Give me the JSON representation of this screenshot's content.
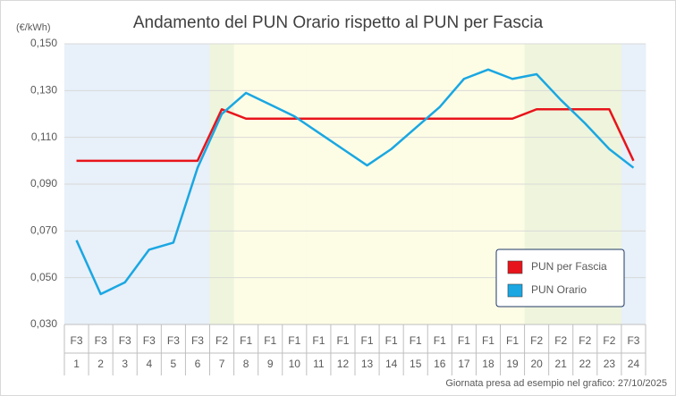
{
  "chart_data": {
    "type": "line",
    "title": "Andamento del PUN Orario rispetto al PUN per Fascia",
    "y_label": "(€/kWh)",
    "footnote": "Giornata presa ad esempio nel grafico: 27/10/2025",
    "categories": [
      "1",
      "2",
      "3",
      "4",
      "5",
      "6",
      "7",
      "8",
      "9",
      "10",
      "11",
      "12",
      "13",
      "14",
      "15",
      "16",
      "17",
      "18",
      "19",
      "20",
      "21",
      "22",
      "23",
      "24"
    ],
    "bands": [
      "F3",
      "F3",
      "F3",
      "F3",
      "F3",
      "F3",
      "F2",
      "F1",
      "F1",
      "F1",
      "F1",
      "F1",
      "F1",
      "F1",
      "F1",
      "F1",
      "F1",
      "F1",
      "F1",
      "F2",
      "F2",
      "F2",
      "F2",
      "F3"
    ],
    "band_colors": {
      "F1": "#fdfde6",
      "F2": "#eef5dc",
      "F3": "#e8f0f9"
    },
    "series": [
      {
        "name": "PUN per Fascia",
        "color": "#e8141b",
        "values": [
          0.1,
          0.1,
          0.1,
          0.1,
          0.1,
          0.1,
          0.122,
          0.118,
          0.118,
          0.118,
          0.118,
          0.118,
          0.118,
          0.118,
          0.118,
          0.118,
          0.118,
          0.118,
          0.118,
          0.122,
          0.122,
          0.122,
          0.122,
          0.1
        ]
      },
      {
        "name": "PUN Orario",
        "color": "#1aa7e2",
        "values": [
          0.066,
          0.043,
          0.048,
          0.062,
          0.065,
          0.097,
          0.12,
          0.129,
          0.124,
          0.119,
          0.112,
          0.105,
          0.098,
          0.105,
          0.114,
          0.123,
          0.135,
          0.139,
          0.135,
          0.137,
          0.126,
          0.116,
          0.105,
          0.097
        ]
      }
    ],
    "ylim": [
      0.03,
      0.15
    ],
    "yticks": [
      {
        "value": 0.03,
        "label": "0,030"
      },
      {
        "value": 0.05,
        "label": "0,050"
      },
      {
        "value": 0.07,
        "label": "0,070"
      },
      {
        "value": 0.09,
        "label": "0,090"
      },
      {
        "value": 0.11,
        "label": "0,110"
      },
      {
        "value": 0.13,
        "label": "0,130"
      },
      {
        "value": 0.15,
        "label": "0,150"
      }
    ],
    "grid": true
  }
}
